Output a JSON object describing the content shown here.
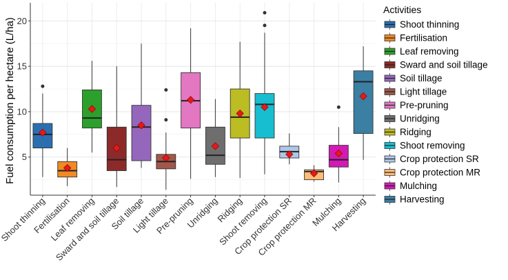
{
  "chart_data": {
    "type": "boxplot",
    "title": "",
    "xlabel": "",
    "ylabel": "Fuel consumption per hectare (L/ha)",
    "ylim": [
      0.8,
      22
    ],
    "yticks": [
      5,
      10,
      15,
      20
    ],
    "grid": true,
    "legend": {
      "title": "Activities",
      "position": "right"
    },
    "categories": [
      "Shoot thinning",
      "Fertilisation",
      "Leaf removing",
      "Sward and soil tillage",
      "Soil tillage",
      "Light tillage",
      "Pre-pruning",
      "Unridging",
      "Ridging",
      "Shoot removing",
      "Crop protection SR",
      "Crop protection MR",
      "Mulching",
      "Harvesting"
    ],
    "series": [
      {
        "name": "Shoot thinning",
        "color": "#2C6FB0",
        "whisker_low": 2.8,
        "q1": 6.0,
        "median": 7.5,
        "q3": 8.7,
        "whisker_high": 12.0,
        "mean": 7.7,
        "outliers": [
          12.8
        ]
      },
      {
        "name": "Fertilisation",
        "color": "#F08A24",
        "whisker_low": 1.8,
        "q1": 2.8,
        "median": 3.5,
        "q3": 4.5,
        "whisker_high": 6.0,
        "mean": 3.8,
        "outliers": []
      },
      {
        "name": "Leaf removing",
        "color": "#2CA02C",
        "whisker_low": 5.5,
        "q1": 8.2,
        "median": 9.3,
        "q3": 12.4,
        "whisker_high": 15.6,
        "mean": 10.3,
        "outliers": []
      },
      {
        "name": "Sward and soil tillage",
        "color": "#8C2A2A",
        "whisker_low": 1.7,
        "q1": 3.5,
        "median": 4.7,
        "q3": 8.3,
        "whisker_high": 15.0,
        "mean": 6.0,
        "outliers": []
      },
      {
        "name": "Soil tillage",
        "color": "#9467BD",
        "whisker_low": 3.8,
        "q1": 4.6,
        "median": 8.3,
        "q3": 10.7,
        "whisker_high": 17.5,
        "mean": 8.5,
        "outliers": []
      },
      {
        "name": "Light tillage",
        "color": "#A0584A",
        "whisker_low": 1.4,
        "q1": 3.7,
        "median": 4.5,
        "q3": 5.3,
        "whisker_high": 7.7,
        "mean": 4.9,
        "outliers": [
          9.1,
          12.4
        ]
      },
      {
        "name": "Pre-pruning",
        "color": "#E377C2",
        "whisker_low": 2.6,
        "q1": 8.2,
        "median": 11.2,
        "q3": 14.3,
        "whisker_high": 19.2,
        "mean": 11.3,
        "outliers": []
      },
      {
        "name": "Unridging",
        "color": "#6E6E6E",
        "whisker_low": 2.8,
        "q1": 4.2,
        "median": 5.2,
        "q3": 8.3,
        "whisker_high": 11.4,
        "mean": 6.2,
        "outliers": []
      },
      {
        "name": "Ridging",
        "color": "#BCBD22",
        "whisker_low": 2.7,
        "q1": 7.1,
        "median": 9.4,
        "q3": 12.5,
        "whisker_high": 17.7,
        "mean": 9.8,
        "outliers": []
      },
      {
        "name": "Shoot removing",
        "color": "#17BECF",
        "whisker_low": 3.1,
        "q1": 7.1,
        "median": 10.8,
        "q3": 12.0,
        "whisker_high": 18.7,
        "mean": 10.5,
        "outliers": [
          19.5,
          20.9
        ]
      },
      {
        "name": "Crop protection SR",
        "color": "#AEC7E8",
        "whisker_low": 4.2,
        "q1": 4.9,
        "median": 5.6,
        "q3": 6.2,
        "whisker_high": 7.6,
        "mean": 5.3,
        "outliers": []
      },
      {
        "name": "Crop protection MR",
        "color": "#FFBB78",
        "whisker_low": 2.3,
        "q1": 2.5,
        "median": 3.4,
        "q3": 3.6,
        "whisker_high": 4.1,
        "mean": 3.2,
        "outliers": []
      },
      {
        "name": "Mulching",
        "color": "#D21BB4",
        "whisker_low": 2.2,
        "q1": 3.9,
        "median": 4.7,
        "q3": 6.3,
        "whisker_high": 8.3,
        "mean": 5.4,
        "outliers": [
          10.5
        ]
      },
      {
        "name": "Harvesting",
        "color": "#3B7FA3",
        "whisker_low": 4.7,
        "q1": 7.6,
        "median": 13.3,
        "q3": 14.5,
        "whisker_high": 17.2,
        "mean": 11.7,
        "outliers": []
      }
    ],
    "mean_marker": {
      "shape": "diamond",
      "color": "#E31A1C"
    }
  }
}
